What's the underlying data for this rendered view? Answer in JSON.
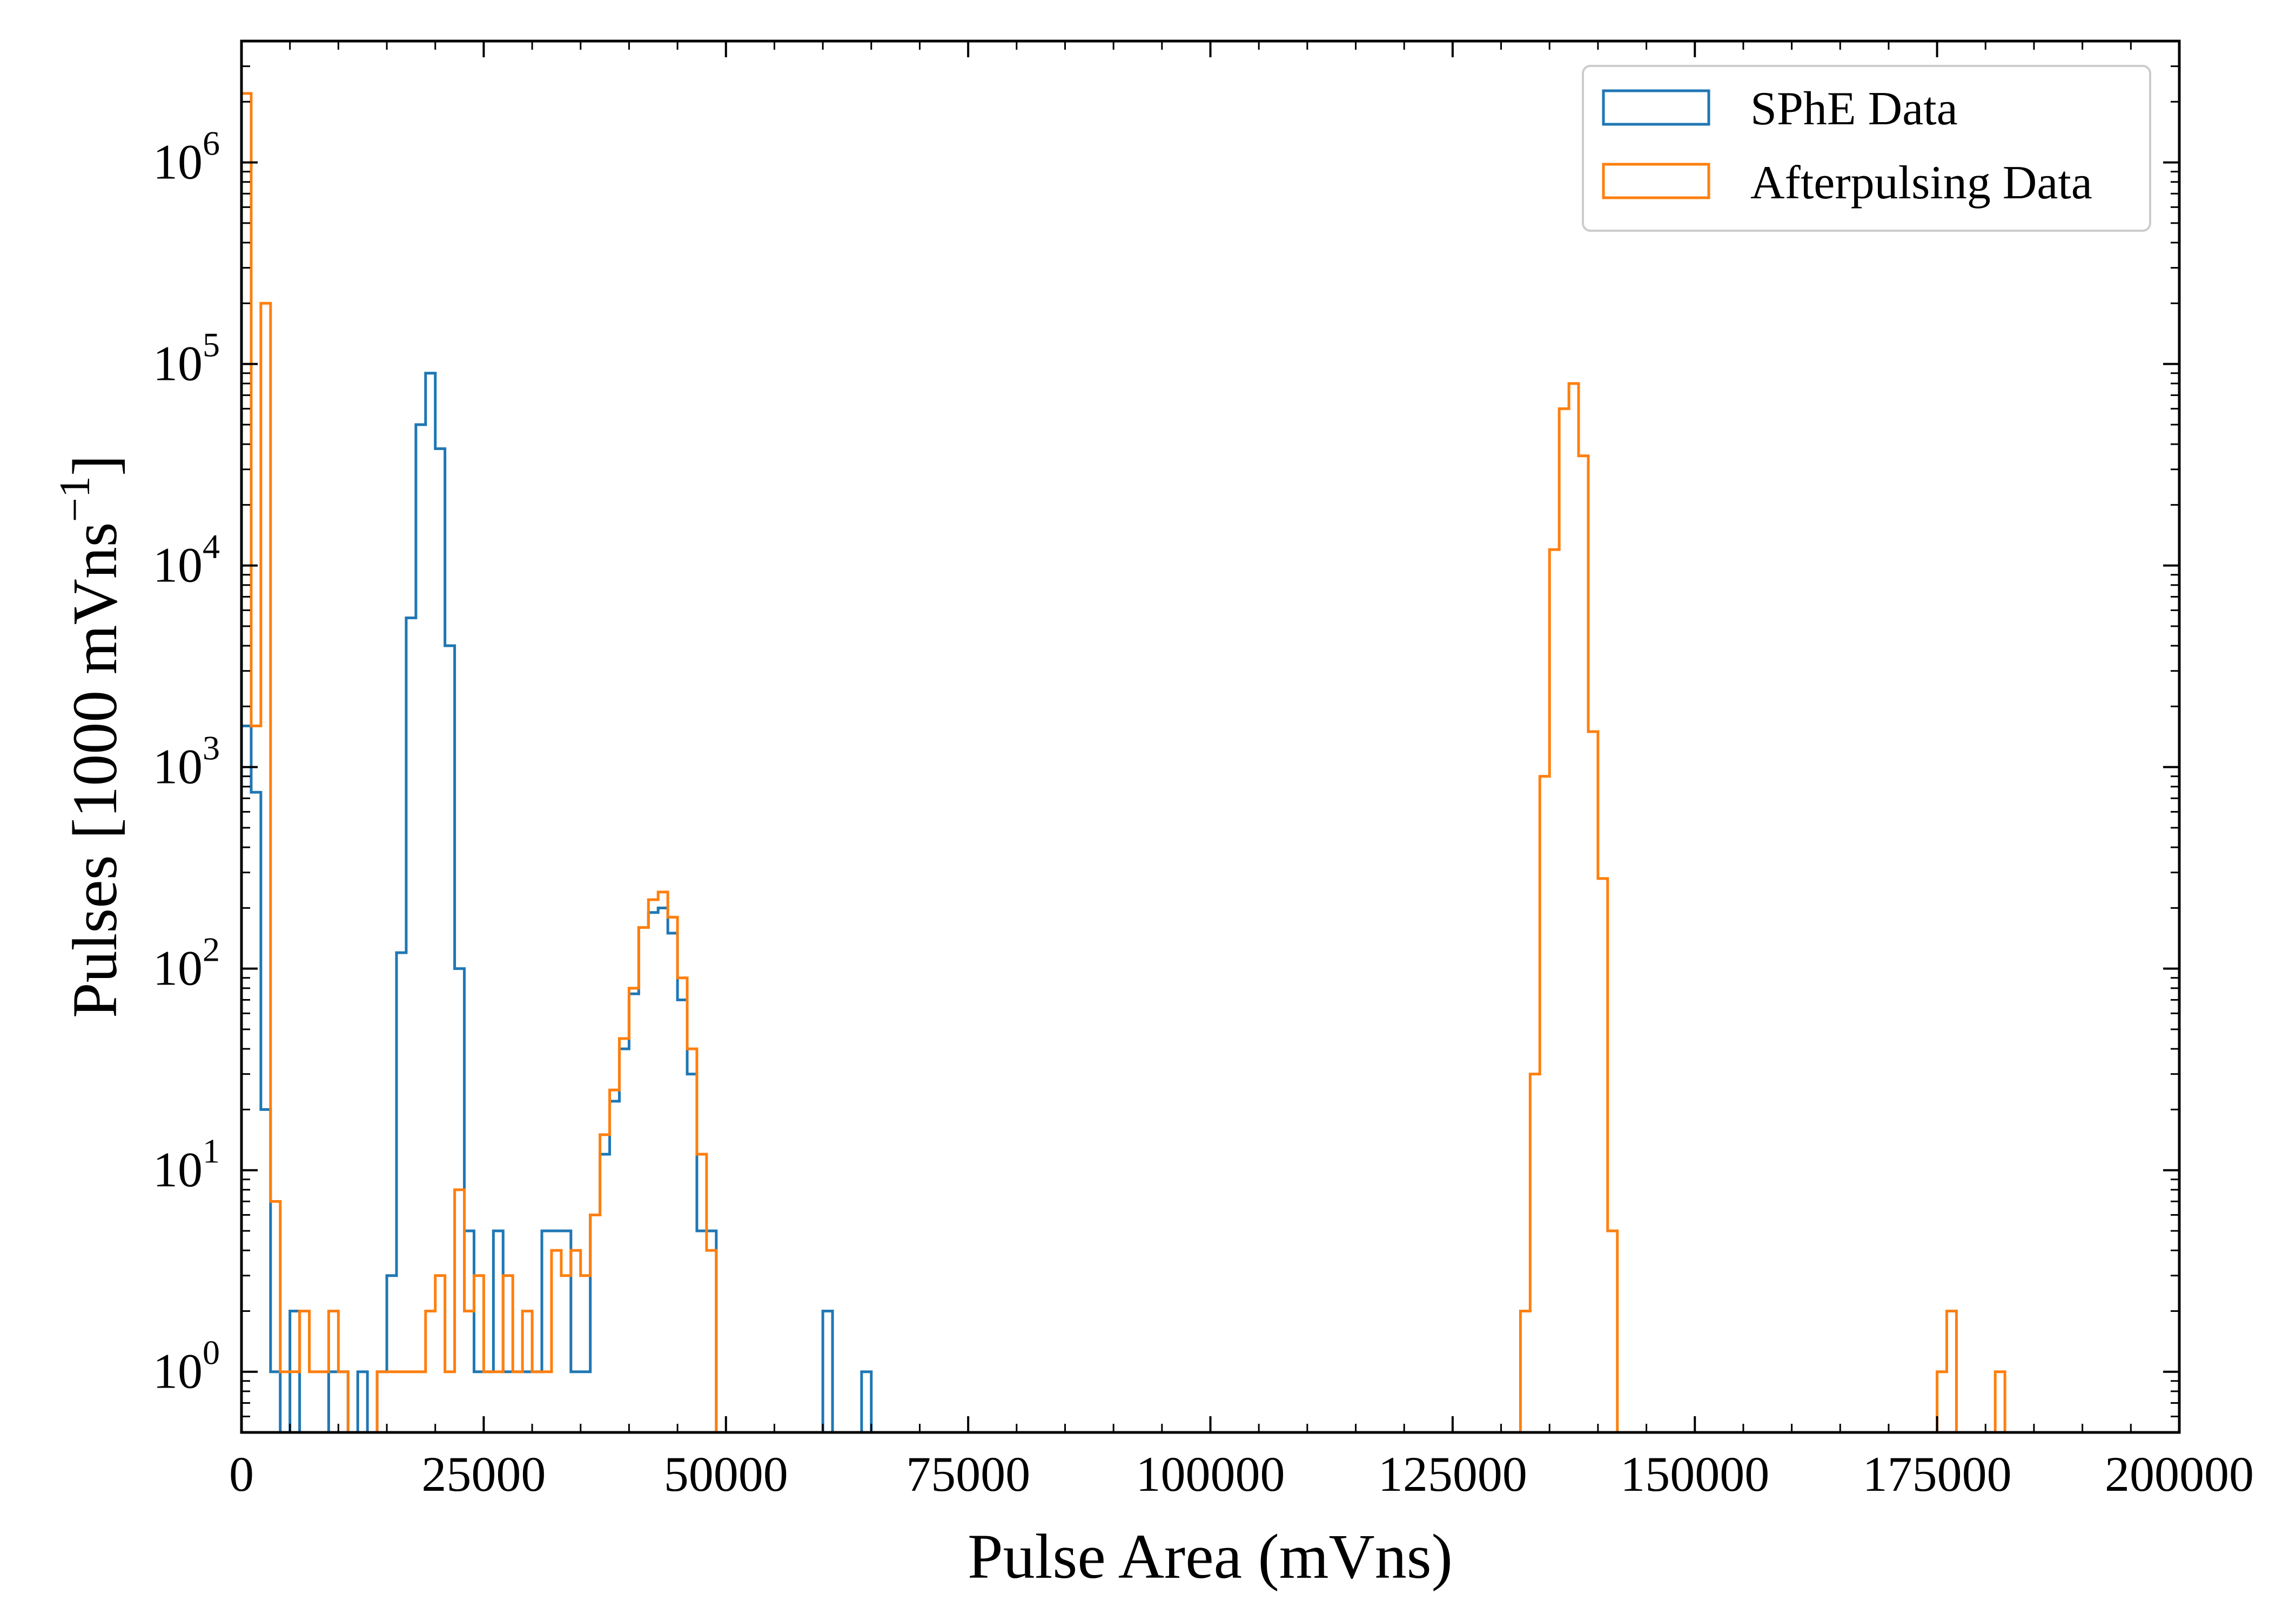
{
  "chart_data": {
    "type": "histogram",
    "xlabel": "Pulse Area (mVns)",
    "ylabel": "Pulses [1000 mVns",
    "ylabel_superscript": "−1",
    "ylabel_close": "]",
    "xlim": [
      0,
      200000
    ],
    "ylim": [
      0.5,
      4000000
    ],
    "yscale": "log",
    "xticks": [
      0,
      25000,
      50000,
      75000,
      100000,
      125000,
      150000,
      175000,
      200000
    ],
    "xtick_labels": [
      "0",
      "25000",
      "50000",
      "75000",
      "100000",
      "125000",
      "150000",
      "175000",
      "200000"
    ],
    "yticks": [
      1,
      10,
      100,
      1000,
      10000,
      100000,
      1000000
    ],
    "ytick_exponents": [
      "0",
      "1",
      "2",
      "3",
      "4",
      "5",
      "6"
    ],
    "ytick_base": "10",
    "bin_width": 1000,
    "legend_position": "top-right",
    "grid": false,
    "series": [
      {
        "name": "SPhE Data",
        "color": "#1f77b4",
        "bins": [
          [
            0,
            1600
          ],
          [
            1000,
            750
          ],
          [
            2000,
            20
          ],
          [
            3000,
            1
          ],
          [
            5000,
            2
          ],
          [
            9000,
            1
          ],
          [
            10000,
            1
          ],
          [
            12000,
            1
          ],
          [
            14000,
            1
          ],
          [
            15000,
            3
          ],
          [
            16000,
            120
          ],
          [
            17000,
            5500
          ],
          [
            18000,
            50000
          ],
          [
            19000,
            90000
          ],
          [
            20000,
            38000
          ],
          [
            21000,
            4000
          ],
          [
            22000,
            100
          ],
          [
            23000,
            5
          ],
          [
            24000,
            1
          ],
          [
            25000,
            1
          ],
          [
            26000,
            5
          ],
          [
            27000,
            1
          ],
          [
            28000,
            1
          ],
          [
            29000,
            1
          ],
          [
            30000,
            1
          ],
          [
            31000,
            5
          ],
          [
            32000,
            5
          ],
          [
            33000,
            5
          ],
          [
            34000,
            1
          ],
          [
            35000,
            1
          ],
          [
            36000,
            6
          ],
          [
            37000,
            12
          ],
          [
            38000,
            22
          ],
          [
            39000,
            40
          ],
          [
            40000,
            75
          ],
          [
            41000,
            160
          ],
          [
            42000,
            190
          ],
          [
            43000,
            200
          ],
          [
            44000,
            150
          ],
          [
            45000,
            70
          ],
          [
            46000,
            30
          ],
          [
            47000,
            5
          ],
          [
            48000,
            5
          ],
          [
            60000,
            2
          ],
          [
            64000,
            1
          ]
        ]
      },
      {
        "name": "Afterpulsing Data",
        "color": "#ff7f0e",
        "bins": [
          [
            0,
            2200000
          ],
          [
            1000,
            1600
          ],
          [
            2000,
            200000
          ],
          [
            3000,
            7
          ],
          [
            4000,
            1
          ],
          [
            5000,
            1
          ],
          [
            6000,
            2
          ],
          [
            7000,
            1
          ],
          [
            8000,
            1
          ],
          [
            9000,
            2
          ],
          [
            10000,
            1
          ],
          [
            14000,
            1
          ],
          [
            15000,
            1
          ],
          [
            16000,
            1
          ],
          [
            17000,
            1
          ],
          [
            18000,
            1
          ],
          [
            19000,
            2
          ],
          [
            20000,
            3
          ],
          [
            21000,
            1
          ],
          [
            22000,
            8
          ],
          [
            23000,
            2
          ],
          [
            24000,
            3
          ],
          [
            25000,
            1
          ],
          [
            26000,
            1
          ],
          [
            27000,
            3
          ],
          [
            28000,
            1
          ],
          [
            29000,
            2
          ],
          [
            30000,
            1
          ],
          [
            31000,
            1
          ],
          [
            32000,
            4
          ],
          [
            33000,
            3
          ],
          [
            34000,
            4
          ],
          [
            35000,
            3
          ],
          [
            36000,
            6
          ],
          [
            37000,
            15
          ],
          [
            38000,
            25
          ],
          [
            39000,
            45
          ],
          [
            40000,
            80
          ],
          [
            41000,
            160
          ],
          [
            42000,
            220
          ],
          [
            43000,
            240
          ],
          [
            44000,
            180
          ],
          [
            45000,
            90
          ],
          [
            46000,
            40
          ],
          [
            47000,
            12
          ],
          [
            48000,
            4
          ],
          [
            132000,
            2
          ],
          [
            133000,
            30
          ],
          [
            134000,
            900
          ],
          [
            135000,
            12000
          ],
          [
            136000,
            60000
          ],
          [
            137000,
            80000
          ],
          [
            138000,
            35000
          ],
          [
            139000,
            1500
          ],
          [
            140000,
            280
          ],
          [
            141000,
            5
          ],
          [
            175000,
            1
          ],
          [
            176000,
            2
          ],
          [
            181000,
            1
          ]
        ]
      }
    ]
  }
}
